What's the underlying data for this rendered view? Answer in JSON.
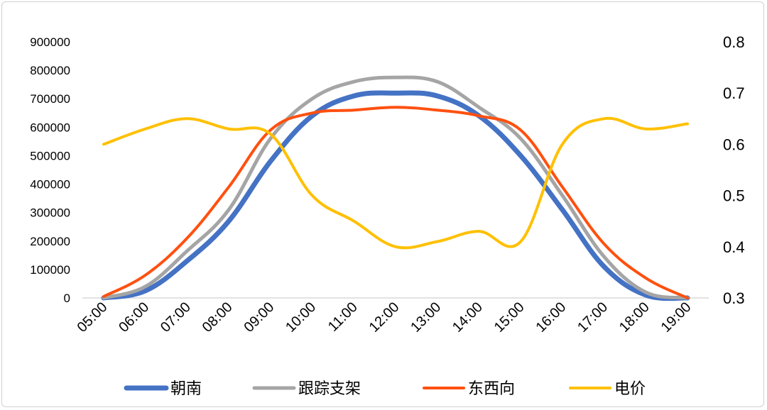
{
  "chart_data": {
    "type": "line",
    "title": "",
    "xlabel": "",
    "ylabel": "",
    "ylabel_right": "",
    "categories": [
      "05:00",
      "06:00",
      "07:00",
      "08:00",
      "09:00",
      "10:00",
      "11:00",
      "12:00",
      "13:00",
      "14:00",
      "15:00",
      "16:00",
      "17:00",
      "18:00",
      "19:00"
    ],
    "ylim": [
      0,
      900000
    ],
    "yticks": [
      "0",
      "100000",
      "200000",
      "300000",
      "400000",
      "500000",
      "600000",
      "700000",
      "800000",
      "900000"
    ],
    "ylim_right": [
      0.3,
      0.8
    ],
    "yticks_right": [
      "0.3",
      "0.4",
      "0.5",
      "0.6",
      "0.7",
      "0.8"
    ],
    "grid": false,
    "legend_position": "bottom",
    "series": [
      {
        "name": "朝南",
        "axis": "left",
        "color": "#4472C4",
        "values": [
          0,
          25000,
          130000,
          270000,
          480000,
          640000,
          710000,
          720000,
          710000,
          640000,
          500000,
          310000,
          110000,
          10000,
          0
        ]
      },
      {
        "name": "跟踪支架",
        "axis": "left",
        "color": "#A5A5A5",
        "values": [
          0,
          40000,
          165000,
          310000,
          560000,
          700000,
          760000,
          775000,
          760000,
          670000,
          560000,
          360000,
          145000,
          20000,
          0
        ]
      },
      {
        "name": "东西向",
        "axis": "left",
        "color": "#FF5010",
        "values": [
          5000,
          80000,
          210000,
          390000,
          590000,
          650000,
          660000,
          670000,
          660000,
          640000,
          590000,
          390000,
          190000,
          70000,
          0
        ]
      },
      {
        "name": "电价",
        "axis": "right",
        "color": "#FFC000",
        "values": [
          0.6,
          0.63,
          0.65,
          0.63,
          0.62,
          0.5,
          0.45,
          0.4,
          0.41,
          0.43,
          0.41,
          0.6,
          0.65,
          0.63,
          0.64
        ]
      }
    ]
  }
}
